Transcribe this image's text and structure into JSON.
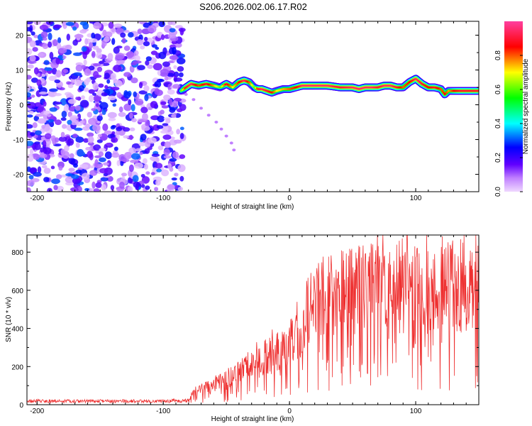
{
  "title": "S206.2026.002.06.17.R02",
  "chart_data": [
    {
      "type": "heatmap",
      "xlabel": "Height of straight line (km)",
      "ylabel": "Frequency (Hz)",
      "xlim": [
        -208,
        150
      ],
      "ylim": [
        -25,
        24
      ],
      "x_ticks": [
        {
          "value": -200,
          "label": "-200"
        },
        {
          "value": -100,
          "label": "-100"
        },
        {
          "value": 0,
          "label": "0"
        },
        {
          "value": 100,
          "label": "100"
        }
      ],
      "y_ticks": [
        {
          "value": 20,
          "label": "20"
        },
        {
          "value": 10,
          "label": "10"
        },
        {
          "value": 0,
          "label": "0"
        },
        {
          "value": -10,
          "label": "-10"
        },
        {
          "value": -20,
          "label": "-20"
        }
      ],
      "noise_region_x": [
        -208,
        -84
      ],
      "noise_level": 0.3,
      "ridge": {
        "x": [
          -86,
          -82,
          -78,
          -72,
          -66,
          -60,
          -55,
          -50,
          -45,
          -40,
          -36,
          -32,
          -28,
          -25,
          -22,
          -18,
          -14,
          -10,
          -5,
          0,
          5,
          10,
          20,
          30,
          40,
          50,
          55,
          60,
          65,
          70,
          75,
          80,
          85,
          90,
          95,
          100,
          105,
          110,
          115,
          120,
          123,
          126,
          130,
          135,
          140,
          145,
          150
        ],
        "freq": [
          4,
          5,
          6,
          5.5,
          6,
          5.5,
          5,
          6,
          5,
          6.5,
          7,
          6.5,
          5,
          4.5,
          4.5,
          4,
          3.5,
          4,
          4.5,
          4.5,
          5,
          5.5,
          5.5,
          5.5,
          5,
          5,
          4.5,
          5,
          5,
          5,
          5.5,
          5.5,
          5,
          5,
          6.5,
          7.5,
          6,
          5,
          5,
          4.5,
          3,
          4,
          4,
          4,
          4,
          4,
          4
        ],
        "amplitude": [
          0.6,
          0.9,
          0.95,
          0.8,
          0.9,
          0.75,
          0.6,
          0.9,
          0.7,
          0.85,
          0.95,
          0.8,
          0.6,
          0.9,
          0.95,
          0.9,
          0.85,
          0.7,
          0.75,
          0.8,
          0.85,
          0.95,
          0.95,
          0.95,
          0.9,
          0.95,
          0.95,
          0.95,
          0.95,
          0.9,
          0.95,
          0.95,
          0.9,
          0.8,
          0.85,
          0.95,
          0.9,
          0.85,
          0.9,
          0.8,
          0.85,
          0.75,
          0.85,
          0.9,
          0.9,
          0.9,
          0.9
        ]
      },
      "faint_branch": {
        "x": [
          -82,
          -76,
          -70,
          -64,
          -58,
          -54,
          -50,
          -46,
          -44
        ],
        "freq": [
          3,
          1.5,
          -1,
          -3,
          -5,
          -7,
          -9,
          -11,
          -13
        ]
      },
      "colorbar": {
        "label": "Normalized spectral amplitude",
        "range": [
          0,
          1
        ],
        "ticks": [
          {
            "value": 0.0,
            "label": "0.0"
          },
          {
            "value": 0.2,
            "label": "0.2"
          },
          {
            "value": 0.4,
            "label": "0.4"
          },
          {
            "value": 0.6,
            "label": "0.6"
          },
          {
            "value": 0.8,
            "label": "0.8"
          }
        ],
        "colors": [
          "#f0d8ff",
          "#c080ff",
          "#6000ff",
          "#0000ff",
          "#00ffff",
          "#00ff00",
          "#ffff00",
          "#ff0000",
          "#ff3f9f"
        ]
      }
    },
    {
      "type": "line",
      "xlabel": "Height of straight line (km)",
      "ylabel": "SNR (10 * v/v)",
      "xlim": [
        -208,
        150
      ],
      "ylim": [
        0,
        890
      ],
      "color": "#ee3030",
      "x_ticks": [
        {
          "value": -200,
          "label": "-200"
        },
        {
          "value": -100,
          "label": "-100"
        },
        {
          "value": 0,
          "label": "0"
        },
        {
          "value": 100,
          "label": "100"
        }
      ],
      "y_ticks": [
        {
          "value": 0,
          "label": "0"
        },
        {
          "value": 200,
          "label": "200"
        },
        {
          "value": 400,
          "label": "400"
        },
        {
          "value": 600,
          "label": "600"
        },
        {
          "value": 800,
          "label": "800"
        }
      ],
      "envelope": {
        "x": [
          -208,
          -100,
          -80,
          -77,
          -72,
          -68,
          -62,
          -55,
          -45,
          -38,
          -30,
          -20,
          -12,
          -5,
          0,
          5,
          10,
          15,
          20,
          25,
          30,
          40,
          50,
          60,
          70,
          80,
          90,
          100,
          110,
          120,
          130,
          140,
          150
        ],
        "snr": [
          20,
          20,
          22,
          60,
          100,
          90,
          110,
          130,
          160,
          200,
          230,
          270,
          300,
          330,
          360,
          420,
          480,
          540,
          580,
          620,
          640,
          660,
          670,
          680,
          690,
          700,
          700,
          700,
          700,
          690,
          700,
          690,
          700
        ]
      },
      "samples_per_km": 3
    }
  ]
}
